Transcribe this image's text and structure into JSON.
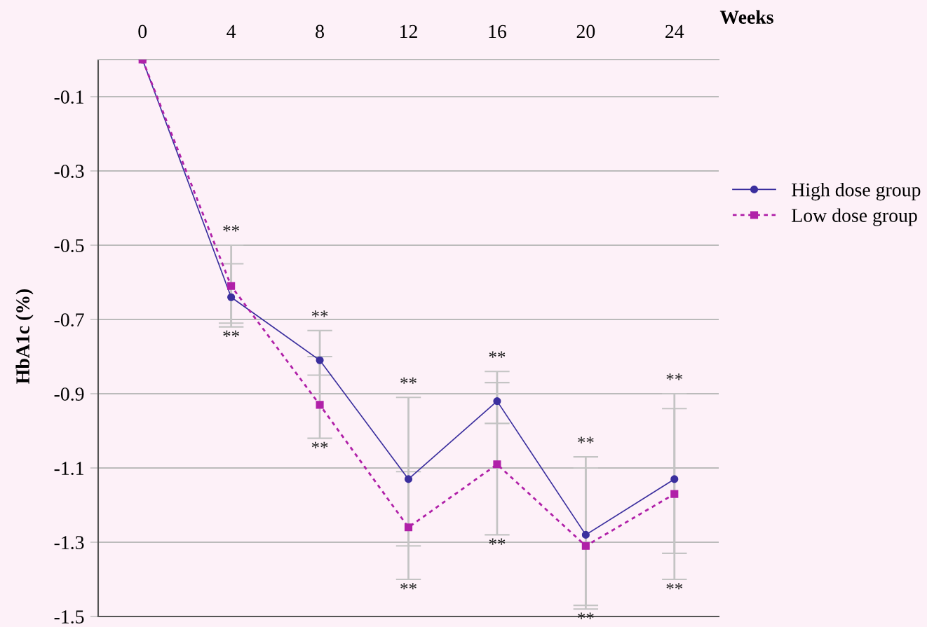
{
  "chart_data": {
    "type": "line",
    "xlabel": "Weeks",
    "ylabel": "HbA1c (%)",
    "categories": [
      "0",
      "4",
      "8",
      "12",
      "16",
      "20",
      "24"
    ],
    "series": [
      {
        "name": "High dose group",
        "color": "#3b2f9e",
        "marker": "circle",
        "line_style": "solid",
        "values": [
          0,
          -0.64,
          -0.81,
          -1.13,
          -0.92,
          -1.28,
          -1.13
        ],
        "errors": [
          null,
          [
            -0.71,
            -0.55
          ],
          [
            -0.85,
            -0.73
          ],
          [
            -1.31,
            -0.91
          ],
          [
            -0.98,
            -0.87
          ],
          [
            -1.47,
            -1.1
          ],
          [
            -1.33,
            -0.94
          ]
        ]
      },
      {
        "name": "Low dose group",
        "color": "#b020a8",
        "marker": "square",
        "line_style": "dashed",
        "values": [
          0,
          -0.61,
          -0.93,
          -1.26,
          -1.09,
          -1.31,
          -1.17
        ],
        "errors": [
          null,
          [
            -0.72,
            -0.5
          ],
          [
            -1.02,
            -0.8
          ],
          [
            -1.4,
            -1.11
          ],
          [
            -1.28,
            -0.84
          ],
          [
            -1.48,
            -1.07
          ],
          [
            -1.4,
            -0.9
          ]
        ]
      }
    ],
    "ylim": [
      -1.5,
      0
    ],
    "yticks": [
      -0.1,
      -0.3,
      -0.5,
      -0.7,
      -0.9,
      -1.1,
      -1.3,
      -1.5
    ],
    "grid": "y",
    "legend": "right",
    "annotations": [
      "**",
      "**",
      "**",
      "**",
      "**",
      "**",
      "**",
      "**",
      "**",
      "**",
      "**",
      "**"
    ]
  }
}
